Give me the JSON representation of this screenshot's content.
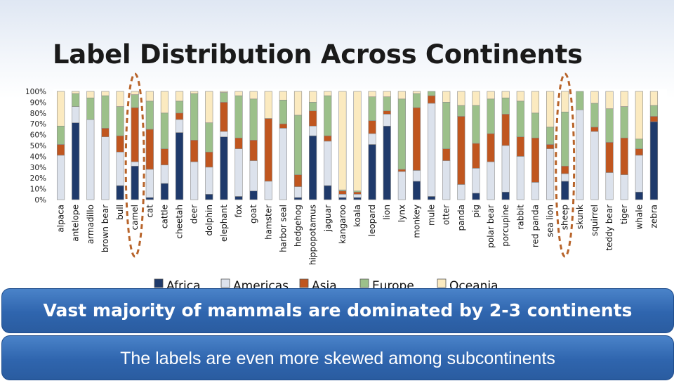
{
  "slide": {
    "title": "Label Distribution Across Continents",
    "banner_1": "Vast majority of mammals are dominated by 2-3 continents",
    "banner_2": "The labels are even more skewed among subcontinents"
  },
  "chart_data": {
    "type": "bar",
    "stacked": true,
    "percent": true,
    "title": "",
    "xlabel": "",
    "ylabel": "",
    "ylim": [
      0,
      100
    ],
    "y_ticks": [
      "0%",
      "10%",
      "20%",
      "30%",
      "40%",
      "50%",
      "60%",
      "70%",
      "80%",
      "90%",
      "100%"
    ],
    "legend_position": "bottom",
    "highlighted_categories": [
      "camel",
      "sheep"
    ],
    "categories": [
      "alpaca",
      "antelope",
      "armadillo",
      "brown bear",
      "bull",
      "camel",
      "cat",
      "cattle",
      "cheetah",
      "deer",
      "dolphin",
      "elephant",
      "fox",
      "goat",
      "hamster",
      "harbor seal",
      "hedgehog",
      "hippopotamus",
      "jaguar",
      "kangaroo",
      "koala",
      "leopard",
      "lion",
      "lynx",
      "monkey",
      "mule",
      "otter",
      "panda",
      "pig",
      "polar bear",
      "porcupine",
      "rabbit",
      "red panda",
      "sea lion",
      "sheep",
      "skunk",
      "squirrel",
      "teddy bear",
      "tiger",
      "whale",
      "zebra"
    ],
    "series": [
      {
        "name": "Africa",
        "color": "#1f3a6b",
        "values": [
          0,
          71,
          0,
          0,
          13,
          31,
          2,
          15,
          62,
          0,
          5,
          58,
          3,
          8,
          0,
          0,
          2,
          59,
          13,
          2,
          2,
          51,
          68,
          0,
          17,
          3,
          0,
          0,
          6,
          0,
          7,
          0,
          0,
          0,
          17,
          0,
          0,
          0,
          0,
          7,
          72
        ]
      },
      {
        "name": "Americas",
        "color": "#dce2ec",
        "values": [
          41,
          15,
          74,
          58,
          31,
          4,
          26,
          17,
          12,
          35,
          25,
          5,
          44,
          28,
          17,
          66,
          10,
          9,
          41,
          3,
          3,
          10,
          11,
          26,
          10,
          86,
          36,
          14,
          23,
          35,
          43,
          40,
          16,
          47,
          7,
          83,
          63,
          25,
          23,
          34,
          0
        ]
      },
      {
        "name": "Asia",
        "color": "#c0561f",
        "values": [
          10,
          0,
          0,
          8,
          15,
          50,
          37,
          15,
          6,
          20,
          14,
          27,
          10,
          19,
          58,
          4,
          11,
          14,
          5,
          3,
          2,
          12,
          3,
          2,
          58,
          7,
          11,
          63,
          23,
          26,
          29,
          18,
          41,
          4,
          7,
          0,
          4,
          28,
          34,
          6,
          5
        ]
      },
      {
        "name": "Europe",
        "color": "#9cc08a",
        "values": [
          17,
          12,
          20,
          30,
          27,
          12,
          26,
          33,
          11,
          43,
          27,
          9,
          39,
          38,
          0,
          22,
          55,
          8,
          37,
          1,
          1,
          22,
          13,
          65,
          13,
          4,
          43,
          10,
          35,
          32,
          15,
          33,
          23,
          16,
          50,
          17,
          22,
          31,
          29,
          9,
          10
        ]
      },
      {
        "name": "Oceania",
        "color": "#fbeac0",
        "values": [
          32,
          2,
          6,
          4,
          14,
          3,
          9,
          20,
          9,
          2,
          29,
          1,
          4,
          7,
          25,
          8,
          22,
          10,
          4,
          91,
          92,
          5,
          5,
          7,
          2,
          0,
          10,
          13,
          13,
          7,
          6,
          9,
          20,
          33,
          19,
          0,
          11,
          16,
          14,
          44,
          13
        ]
      }
    ]
  }
}
